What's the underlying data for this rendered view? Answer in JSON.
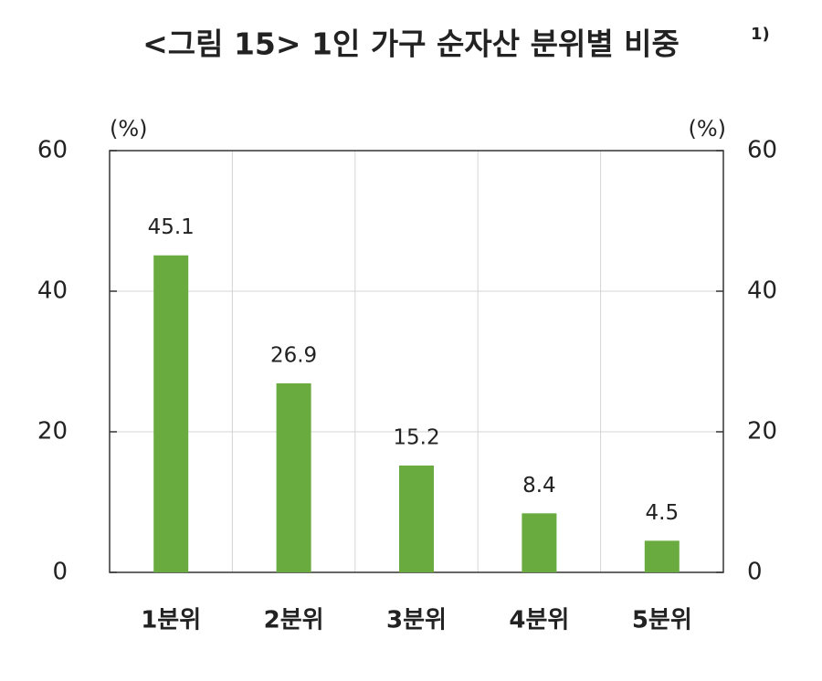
{
  "chart_data": {
    "type": "bar",
    "title": "<그림 15> 1인 가구 순자산 분위별 비중",
    "title_superscript": "1)",
    "y_unit": "(%)",
    "y2_unit": "(%)",
    "categories": [
      "1분위",
      "2분위",
      "3분위",
      "4분위",
      "5분위"
    ],
    "values": [
      45.1,
      26.9,
      15.2,
      8.4,
      4.5
    ],
    "color": "#6aab3f",
    "ylim": [
      0,
      60
    ],
    "yticks": [
      0,
      20,
      40,
      60
    ],
    "y2lim": [
      0,
      60
    ],
    "y2ticks": [
      0,
      20,
      40,
      60
    ],
    "grid": true
  }
}
